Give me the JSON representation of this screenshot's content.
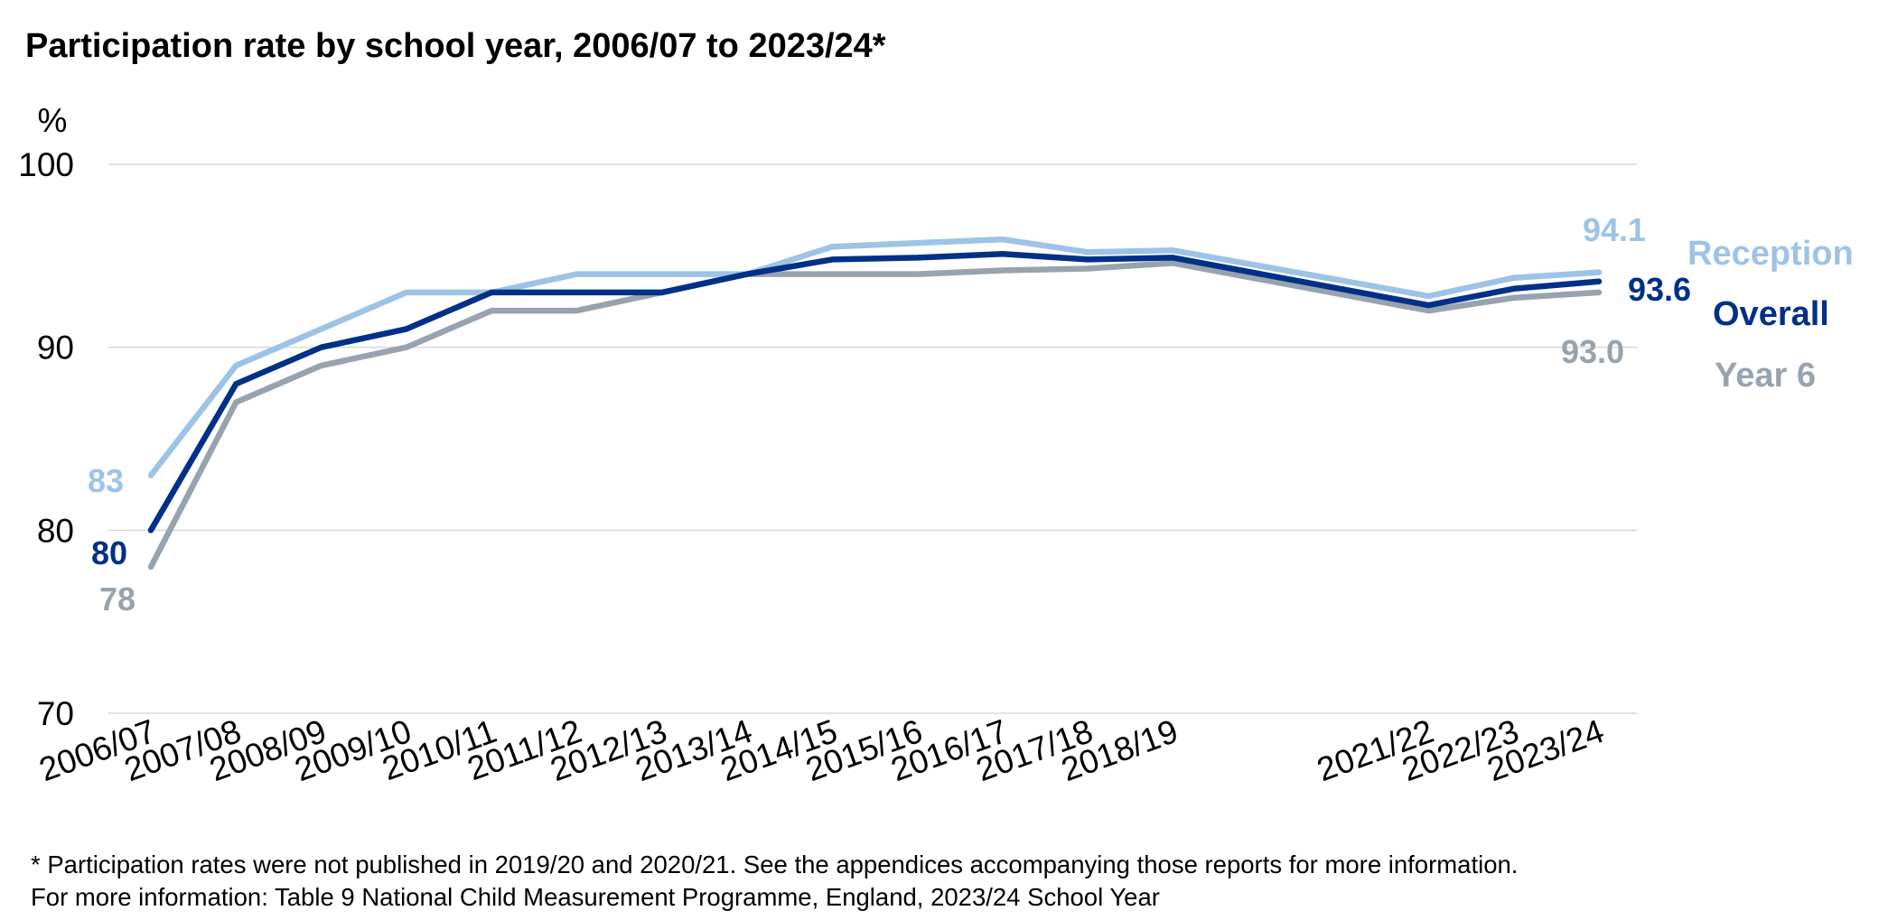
{
  "chart_data": {
    "type": "line",
    "title": "Participation rate by school year, 2006/07 to 2023/24*",
    "ylabel": "%",
    "ylim": [
      70,
      100
    ],
    "yticks": [
      70,
      80,
      90,
      100
    ],
    "grid": true,
    "legend": "right",
    "categories": [
      "2006/07",
      "2007/08",
      "2008/09",
      "2009/10",
      "2010/11",
      "2011/12",
      "2012/13",
      "2013/14",
      "2014/15",
      "2015/16",
      "2016/17",
      "2017/18",
      "2018/19",
      "2019/20",
      "2020/21",
      "2021/22",
      "2022/23",
      "2023/24"
    ],
    "tick_labels": [
      "2006/07",
      "2007/08",
      "2008/09",
      "2009/10",
      "2010/11",
      "2011/12",
      "2012/13",
      "2013/14",
      "2014/15",
      "2015/16",
      "2016/17",
      "2017/18",
      "2018/19",
      "",
      "",
      "2021/22",
      "2022/23",
      "2023/24"
    ],
    "series": [
      {
        "name": "Reception",
        "color": "#9dc3e6",
        "values": [
          83,
          89,
          91,
          93,
          93,
          94,
          94,
          94,
          95.5,
          95.7,
          95.9,
          95.2,
          95.3,
          null,
          null,
          92.8,
          93.8,
          94.1
        ],
        "start_label": "83",
        "end_label": "94.1"
      },
      {
        "name": "Overall",
        "color": "#003087",
        "values": [
          80,
          88,
          90,
          91,
          93,
          93,
          93,
          94,
          94.8,
          94.9,
          95.1,
          94.8,
          94.9,
          null,
          null,
          92.3,
          93.2,
          93.6
        ],
        "start_label": "80",
        "end_label": "93.6"
      },
      {
        "name": "Year 6",
        "color": "#97a3ae",
        "values": [
          78,
          87,
          89,
          90,
          92,
          92,
          93,
          94,
          94,
          94,
          94.2,
          94.3,
          94.6,
          null,
          null,
          92,
          92.7,
          93
        ],
        "start_label": "78",
        "end_label": "93.0"
      }
    ]
  },
  "footnotes": {
    "line1": "* Participation rates were not published in 2019/20 and 2020/21. See the appendices accompanying those reports for more information.",
    "line2": "For more information: Table 9 National Child Measurement Programme, England, 2023/24 School Year"
  }
}
